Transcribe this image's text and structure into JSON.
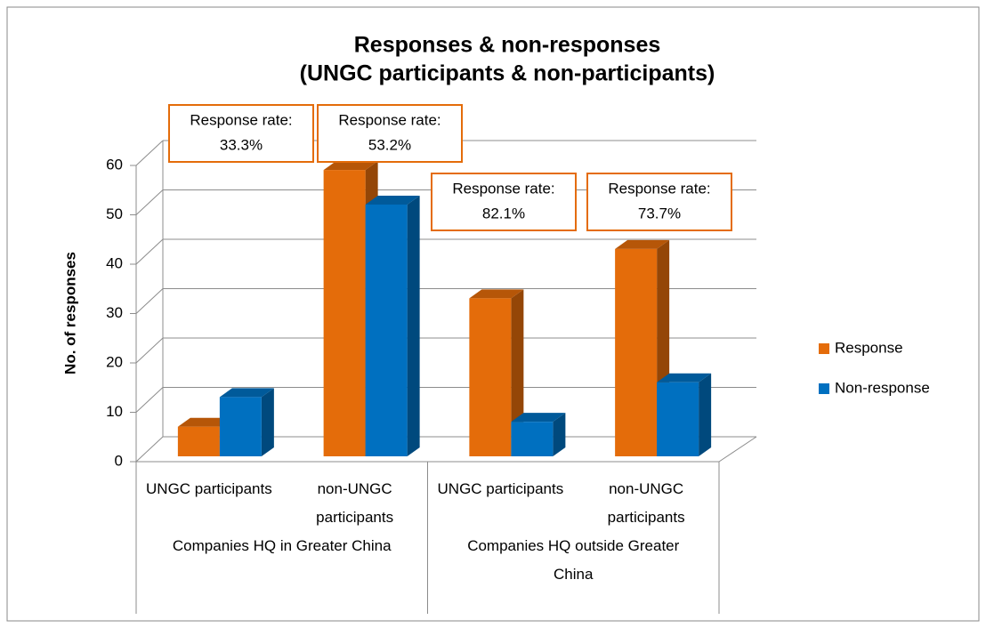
{
  "chart_data": {
    "type": "bar3d",
    "title": [
      "Responses & non-responses",
      "(UNGC participants & non-participants)"
    ],
    "y_label": "No. of responses",
    "categories": [
      "UNGC participants",
      "non-UNGC participants",
      "UNGC participants",
      "non-UNGC participants"
    ],
    "category_groups": [
      "Companies HQ in Greater China",
      "Companies HQ outside Greater China"
    ],
    "series": [
      {
        "name": "Response",
        "color": "#e46c0a",
        "values": [
          6,
          58,
          32,
          42
        ]
      },
      {
        "name": "Non-response",
        "color": "#0070c0",
        "values": [
          12,
          51,
          7,
          15
        ]
      }
    ],
    "annotations": [
      [
        "Response rate:",
        "33.3%"
      ],
      [
        "Response rate:",
        "53.2%"
      ],
      [
        "Response rate:",
        "82.1%"
      ],
      [
        "Response rate:",
        "73.7%"
      ]
    ],
    "ylim": [
      0,
      60
    ],
    "yticks": [
      0,
      10,
      20,
      30,
      40,
      50,
      60
    ],
    "grid": true,
    "legend": "right"
  }
}
